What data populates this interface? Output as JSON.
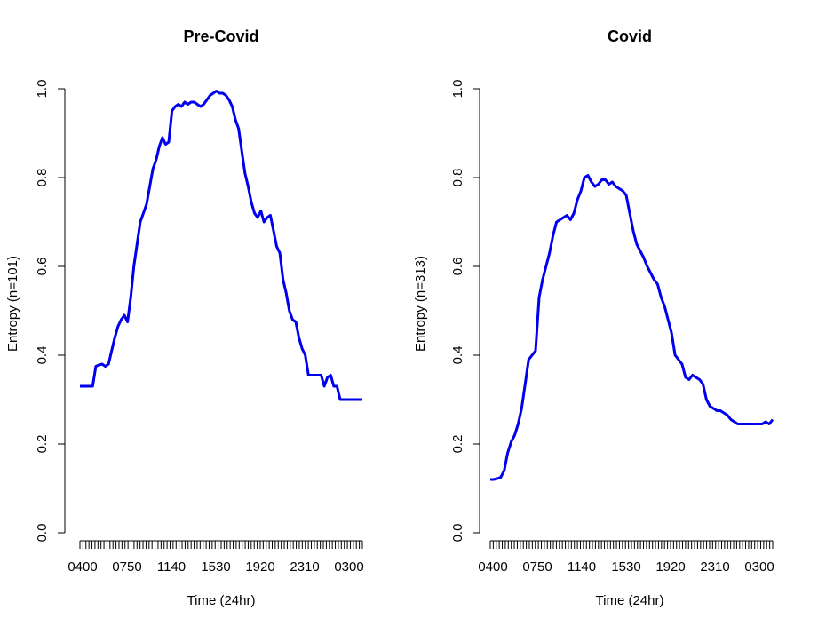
{
  "chart_data": [
    {
      "type": "line",
      "title": "Pre-Covid",
      "xlabel": "Time (24hr)",
      "ylabel": "Entropy (n=101)",
      "ylim": [
        0,
        1
      ],
      "yticks": [
        "0.0",
        "0.2",
        "0.4",
        "0.6",
        "0.8",
        "1.0"
      ],
      "xtick_labels": [
        "0400",
        "0750",
        "1140",
        "1530",
        "1920",
        "2310",
        "0300"
      ],
      "series_color": "#0000ee",
      "series": [
        {
          "name": "",
          "values": [
            0.33,
            0.33,
            0.33,
            0.33,
            0.33,
            0.375,
            0.378,
            0.38,
            0.375,
            0.38,
            0.41,
            0.44,
            0.465,
            0.48,
            0.49,
            0.475,
            0.53,
            0.6,
            0.65,
            0.7,
            0.72,
            0.74,
            0.78,
            0.82,
            0.84,
            0.87,
            0.89,
            0.875,
            0.88,
            0.95,
            0.96,
            0.965,
            0.96,
            0.97,
            0.965,
            0.97,
            0.97,
            0.965,
            0.96,
            0.965,
            0.975,
            0.985,
            0.99,
            0.995,
            0.99,
            0.99,
            0.985,
            0.975,
            0.96,
            0.93,
            0.91,
            0.86,
            0.81,
            0.78,
            0.745,
            0.72,
            0.71,
            0.725,
            0.7,
            0.71,
            0.715,
            0.68,
            0.645,
            0.63,
            0.57,
            0.54,
            0.5,
            0.48,
            0.475,
            0.44,
            0.415,
            0.4,
            0.355,
            0.355,
            0.355,
            0.355,
            0.355,
            0.33,
            0.35,
            0.355,
            0.33,
            0.33,
            0.3,
            0.3,
            0.3,
            0.3,
            0.3,
            0.3,
            0.3,
            0.3
          ]
        }
      ]
    },
    {
      "type": "line",
      "title": "Covid",
      "xlabel": "Time (24hr)",
      "ylabel": "Entropy (n=313)",
      "ylim": [
        0,
        1
      ],
      "yticks": [
        "0.0",
        "0.2",
        "0.4",
        "0.6",
        "0.8",
        "1.0"
      ],
      "xtick_labels": [
        "0400",
        "0750",
        "1140",
        "1530",
        "1920",
        "2310",
        "0300"
      ],
      "series_color": "#0000ee",
      "series": [
        {
          "name": "",
          "values": [
            0.12,
            0.12,
            0.122,
            0.125,
            0.14,
            0.18,
            0.205,
            0.22,
            0.245,
            0.28,
            0.335,
            0.39,
            0.4,
            0.41,
            0.53,
            0.57,
            0.6,
            0.63,
            0.67,
            0.7,
            0.705,
            0.71,
            0.715,
            0.705,
            0.72,
            0.75,
            0.77,
            0.8,
            0.805,
            0.79,
            0.78,
            0.785,
            0.795,
            0.795,
            0.785,
            0.79,
            0.78,
            0.775,
            0.77,
            0.76,
            0.72,
            0.68,
            0.65,
            0.635,
            0.62,
            0.6,
            0.585,
            0.57,
            0.56,
            0.53,
            0.51,
            0.48,
            0.45,
            0.4,
            0.39,
            0.38,
            0.35,
            0.345,
            0.355,
            0.35,
            0.345,
            0.335,
            0.3,
            0.285,
            0.28,
            0.275,
            0.275,
            0.27,
            0.265,
            0.255,
            0.25,
            0.245,
            0.245,
            0.245,
            0.245,
            0.245,
            0.245,
            0.245,
            0.245,
            0.25,
            0.245,
            0.255
          ]
        }
      ]
    }
  ]
}
